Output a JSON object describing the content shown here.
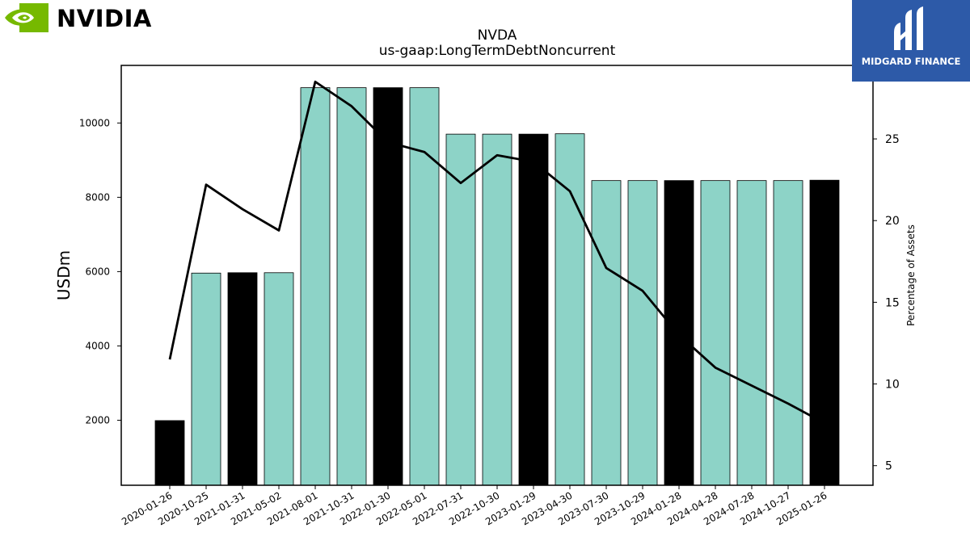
{
  "branding": {
    "left_logo_text": "NVIDIA",
    "right_logo_text": "MIDGARD FINANCE",
    "left_logo_color": "#76b900",
    "right_logo_bg": "#2d5aa8"
  },
  "chart_data": {
    "type": "bar",
    "title": "NVDA",
    "subtitle": "us-gaap:LongTermDebtNoncurrent",
    "ylabel": "USDm",
    "y2label": "Percentage of Assets",
    "ylim": [
      250,
      11550
    ],
    "y2lim": [
      3.8,
      29.5
    ],
    "yticks": [
      2000,
      4000,
      6000,
      8000,
      10000
    ],
    "y2ticks": [
      5,
      10,
      15,
      20,
      25
    ],
    "grid": false,
    "categories": [
      "2020-01-26",
      "2020-10-25",
      "2021-01-31",
      "2021-05-02",
      "2021-08-01",
      "2021-10-31",
      "2022-01-30",
      "2022-05-01",
      "2022-07-31",
      "2022-10-30",
      "2023-01-29",
      "2023-04-30",
      "2023-07-30",
      "2023-10-29",
      "2024-01-28",
      "2024-04-28",
      "2024-07-28",
      "2024-10-27",
      "2025-01-26"
    ],
    "series": [
      {
        "kind": "bar",
        "axis": "left",
        "values": [
          1990,
          5960,
          5970,
          5970,
          10950,
          10950,
          10950,
          10950,
          9700,
          9700,
          9700,
          9710,
          8450,
          8450,
          8450,
          8450,
          8450,
          8450,
          8460
        ]
      },
      {
        "kind": "line",
        "axis": "right",
        "values": [
          11.5,
          22.2,
          20.7,
          19.4,
          28.5,
          27.0,
          24.8,
          24.2,
          22.3,
          24.0,
          23.6,
          21.8,
          17.1,
          15.7,
          13.0,
          11.0,
          9.9,
          8.8,
          7.6
        ]
      }
    ],
    "colors": {
      "quarterly_bar": "#8dd3c7",
      "annual_bar": "#000000",
      "line": "#000000",
      "bar_edge": "#000000"
    },
    "annual_flags": [
      true,
      false,
      true,
      false,
      false,
      false,
      true,
      false,
      false,
      false,
      true,
      false,
      false,
      false,
      true,
      false,
      false,
      false,
      true
    ]
  }
}
